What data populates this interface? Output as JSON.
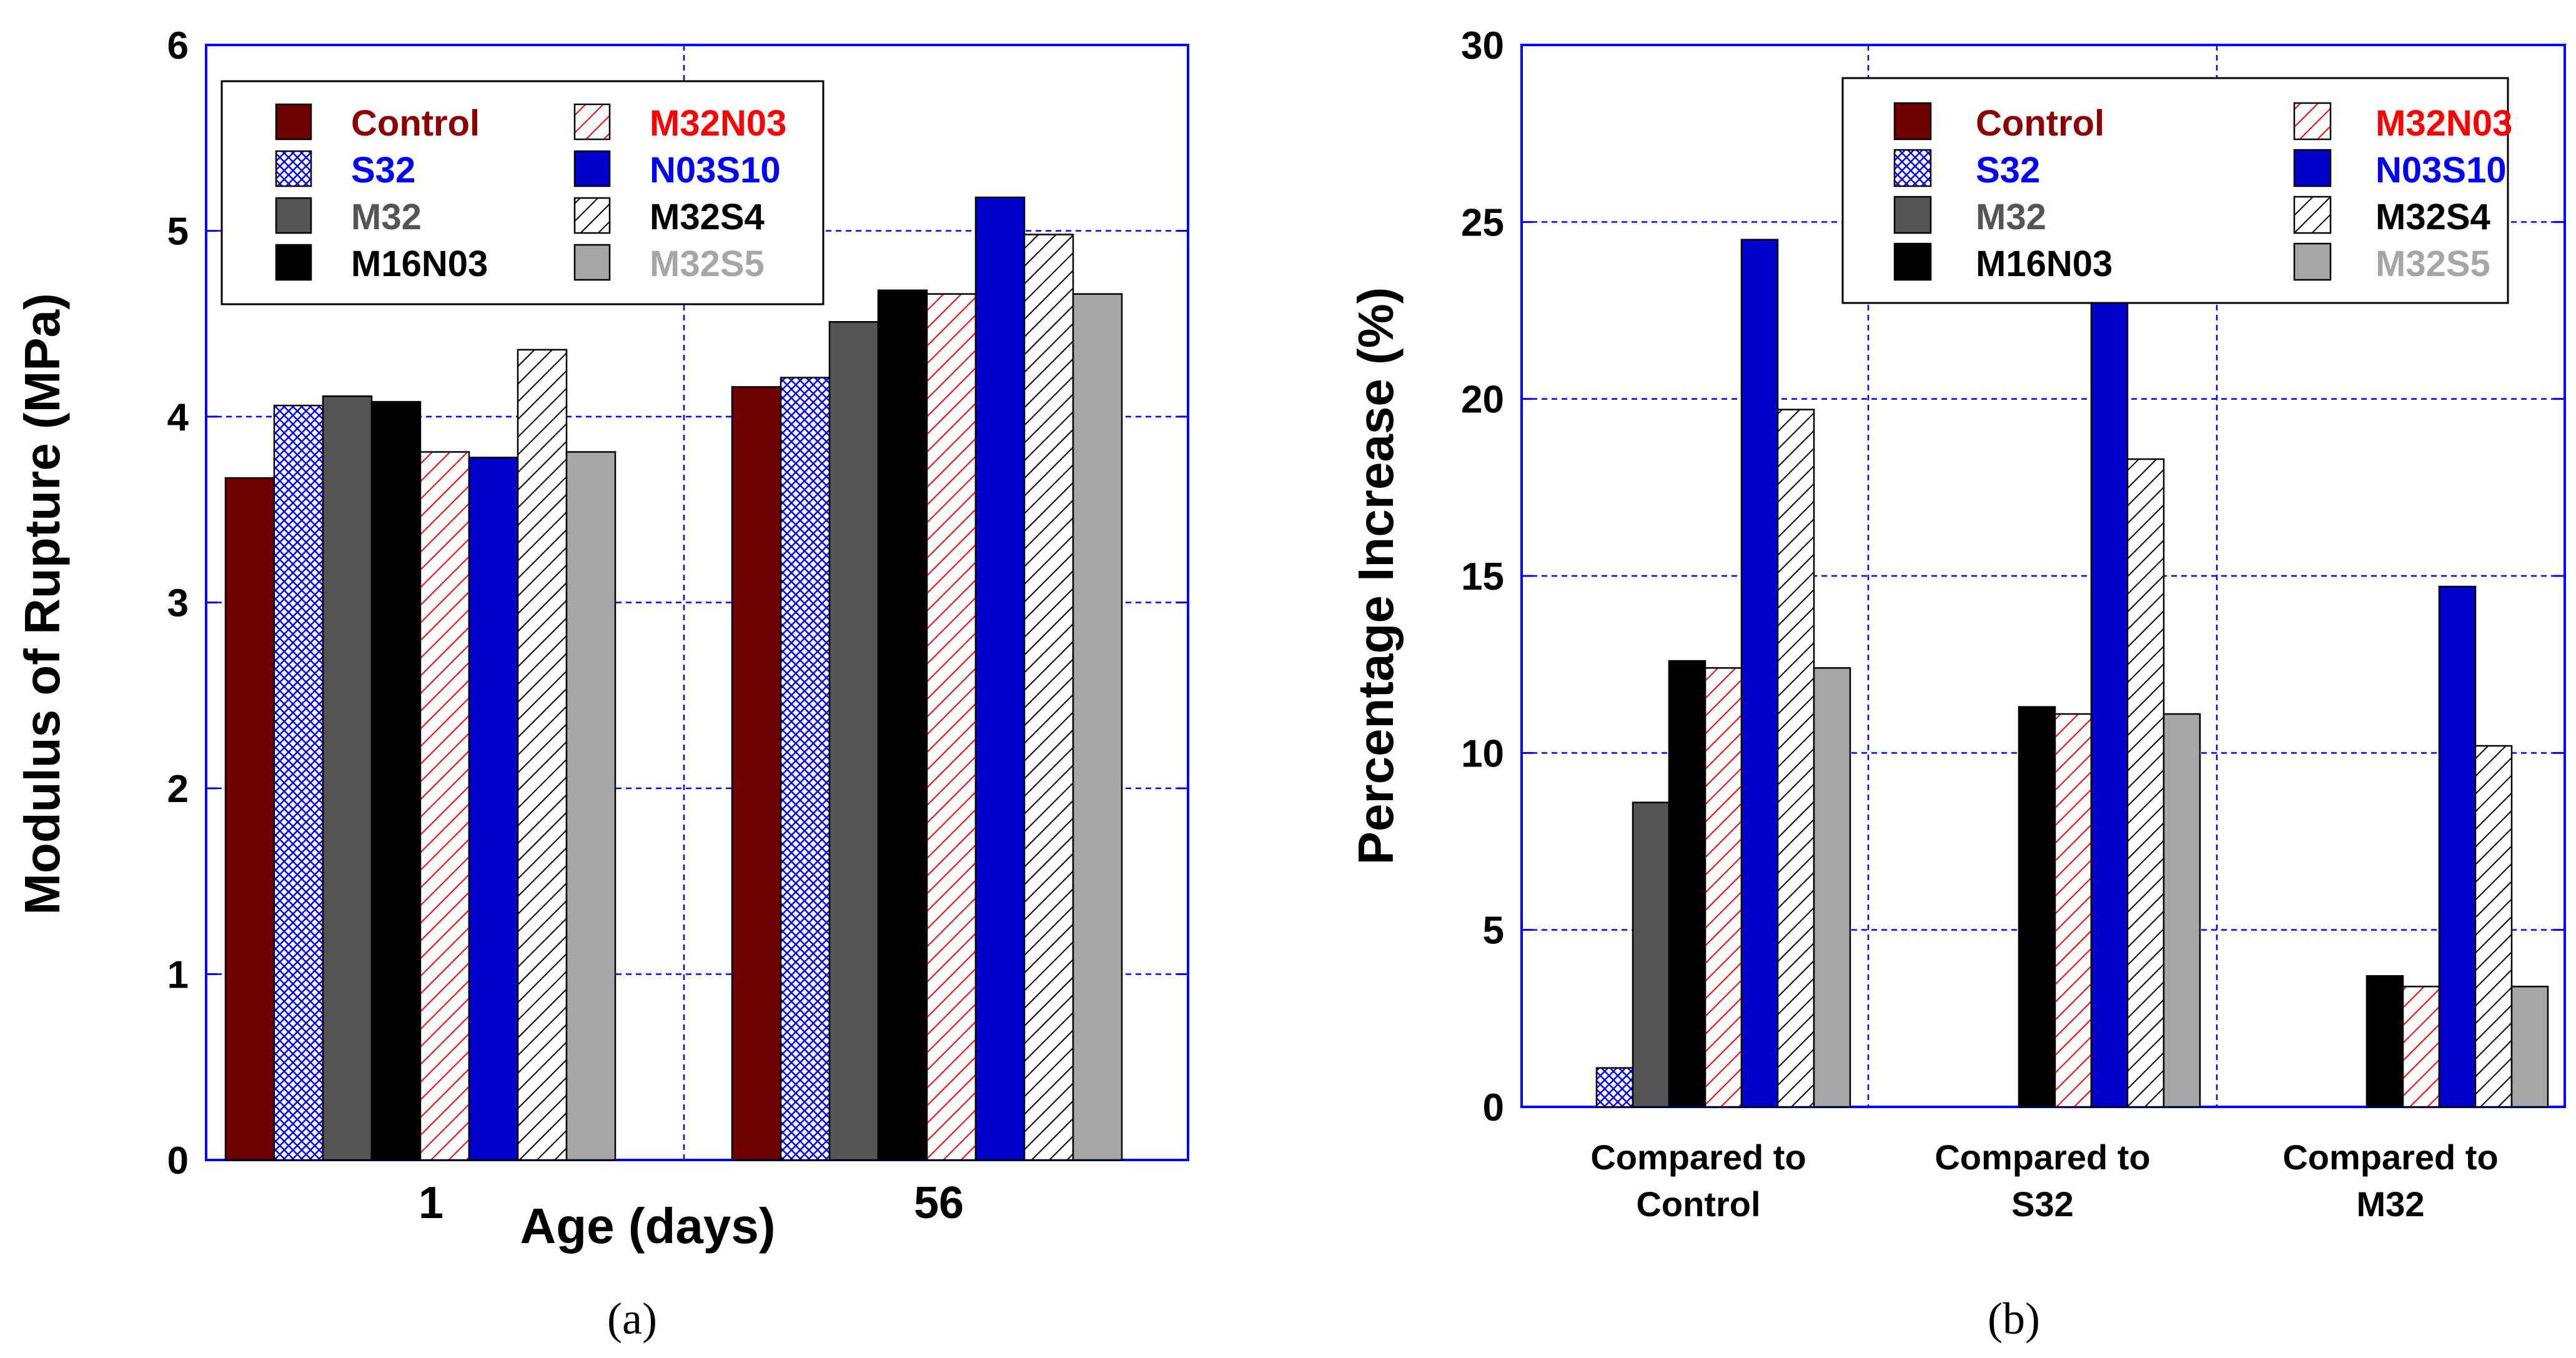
{
  "colors": {
    "control": "#6e0000",
    "s32": "#0000ee",
    "m32": "#555555",
    "m16n03": "#000000",
    "m32n03": "#ff0000",
    "n03s10": "#0000cc",
    "m32s4": "#000000",
    "m32s5": "#a6a6a6",
    "grid": "#0000ff"
  },
  "legend": {
    "entries": [
      {
        "label": "Control",
        "color": "#8b0000",
        "fill": "solid-control"
      },
      {
        "label": "S32",
        "color": "#0000ff",
        "fill": "crosshatch"
      },
      {
        "label": "M32",
        "color": "#555555",
        "fill": "solid-m32"
      },
      {
        "label": "M16N03",
        "color": "#000000",
        "fill": "solid-black"
      },
      {
        "label": "M32N03",
        "color": "#ff0000",
        "fill": "hatch-red"
      },
      {
        "label": "N03S10",
        "color": "#0000ff",
        "fill": "solid-blue"
      },
      {
        "label": "M32S4",
        "color": "#000000",
        "fill": "hatch-black"
      },
      {
        "label": "M32S5",
        "color": "#a6a6a6",
        "fill": "solid-gray"
      }
    ]
  },
  "panel_a": {
    "caption": "(a)",
    "ylabel": "Modulus of Rupture (MPa)",
    "xlabel": "Age (days)",
    "yticks": [
      "0",
      "1",
      "2",
      "3",
      "4",
      "5",
      "6"
    ]
  },
  "panel_b": {
    "caption": "(b)",
    "ylabel": "Percentage Increase (%)",
    "yticks": [
      "0",
      "5",
      "10",
      "15",
      "20",
      "25",
      "30"
    ]
  },
  "chart_data": [
    {
      "type": "bar",
      "xlabel": "Age (days)",
      "ylabel": "Modulus of Rupture (MPa)",
      "ylim": [
        0,
        6
      ],
      "grid": true,
      "legend_position": "top",
      "categories": [
        "1",
        "56"
      ],
      "series": [
        {
          "name": "Control",
          "values": [
            3.67,
            4.16
          ]
        },
        {
          "name": "S32",
          "values": [
            4.06,
            4.21
          ]
        },
        {
          "name": "M32",
          "values": [
            4.11,
            4.51
          ]
        },
        {
          "name": "M16N03",
          "values": [
            4.08,
            4.68
          ]
        },
        {
          "name": "M32N03",
          "values": [
            3.81,
            4.66
          ]
        },
        {
          "name": "N03S10",
          "values": [
            3.78,
            5.18
          ]
        },
        {
          "name": "M32S4",
          "values": [
            4.36,
            4.98
          ]
        },
        {
          "name": "M32S5",
          "values": [
            3.81,
            4.66
          ]
        }
      ]
    },
    {
      "type": "bar",
      "xlabel": "",
      "ylabel": "Percentage Increase (%)",
      "ylim": [
        0,
        30
      ],
      "grid": true,
      "legend_position": "top-right",
      "categories": [
        "Compared to Control",
        "Compared to S32",
        "Compared to M32"
      ],
      "category_lines": [
        [
          "Compared to",
          "Control"
        ],
        [
          "Compared to",
          "S32"
        ],
        [
          "Compared to",
          "M32"
        ]
      ],
      "series": [
        {
          "name": "Control",
          "values": [
            null,
            null,
            null
          ]
        },
        {
          "name": "S32",
          "values": [
            1.1,
            null,
            null
          ]
        },
        {
          "name": "M32",
          "values": [
            8.6,
            null,
            null
          ]
        },
        {
          "name": "M16N03",
          "values": [
            12.6,
            11.3,
            3.7
          ]
        },
        {
          "name": "M32N03",
          "values": [
            12.4,
            11.1,
            3.4
          ]
        },
        {
          "name": "N03S10",
          "values": [
            24.5,
            23.1,
            14.7
          ]
        },
        {
          "name": "M32S4",
          "values": [
            19.7,
            18.3,
            10.2
          ]
        },
        {
          "name": "M32S5",
          "values": [
            12.4,
            11.1,
            3.4
          ]
        }
      ]
    }
  ]
}
